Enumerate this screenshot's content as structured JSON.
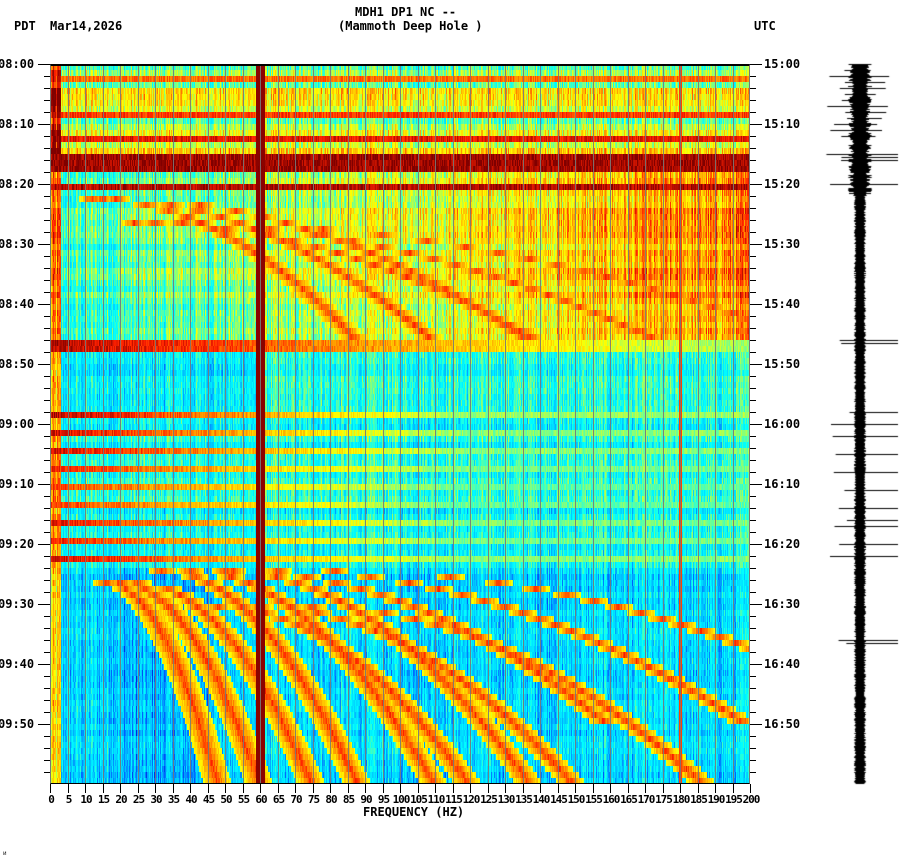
{
  "header": {
    "timezone_left": "PDT",
    "date": "Mar14,2026",
    "station_line": "MDH1 DP1 NC --",
    "station_name": "(Mammoth Deep Hole )",
    "timezone_right": "UTC"
  },
  "footer": {
    "corner_mark": "ᴎ"
  },
  "chart_data": {
    "type": "heatmap",
    "title": "MDH1 DP1 NC -- (Mammoth Deep Hole )",
    "subtitle": "Mar14,2026",
    "xlabel": "FREQUENCY (HZ)",
    "ylabel_left": "PDT",
    "ylabel_right": "UTC",
    "x_range": [
      0,
      200
    ],
    "x_ticks": [
      0,
      5,
      10,
      15,
      20,
      25,
      30,
      35,
      40,
      45,
      50,
      55,
      60,
      65,
      70,
      75,
      80,
      85,
      90,
      95,
      100,
      105,
      110,
      115,
      120,
      125,
      130,
      135,
      140,
      145,
      150,
      155,
      160,
      165,
      170,
      175,
      180,
      185,
      190,
      195,
      200
    ],
    "x_tick_labels": [
      "0",
      "5",
      "10",
      "15",
      "20",
      "25",
      "30",
      "35",
      "40",
      "45",
      "50",
      "55",
      "60",
      "65",
      "70",
      "75",
      "80",
      "85",
      "90",
      "95",
      "100",
      "105",
      "110",
      "115",
      "120",
      "125",
      "130",
      "135",
      "140",
      "145",
      "150",
      "155",
      "160",
      "165",
      "170",
      "175",
      "180",
      "185",
      "190",
      "195",
      "200"
    ],
    "y_range_minutes": [
      0,
      120
    ],
    "y_ticks_left": [
      "08:00",
      "08:10",
      "08:20",
      "08:30",
      "08:40",
      "08:50",
      "09:00",
      "09:10",
      "09:20",
      "09:30",
      "09:40",
      "09:50"
    ],
    "y_ticks_right": [
      "15:00",
      "15:10",
      "15:20",
      "15:30",
      "15:40",
      "15:50",
      "16:00",
      "16:10",
      "16:20",
      "16:30",
      "16:40",
      "16:50"
    ],
    "minor_tick_every_minutes": 2,
    "grid": "vertical lines every 5 Hz",
    "colormap": [
      "#0000c8",
      "#0064ff",
      "#00c8ff",
      "#00ffff",
      "#80ff80",
      "#ffff00",
      "#ffa000",
      "#ff2000",
      "#800000"
    ],
    "persistent_lines_hz": [
      {
        "hz": 60,
        "intensity": 1.0,
        "note": "power-line 60 Hz, dark red full height"
      },
      {
        "hz": 180,
        "intensity": 0.85,
        "note": "thin dark line, full height"
      }
    ],
    "high_energy_rows_minutes": [
      {
        "start": 2,
        "end": 3,
        "level": 0.8
      },
      {
        "start": 8,
        "end": 9,
        "level": 0.85
      },
      {
        "start": 12,
        "end": 13,
        "level": 0.9
      },
      {
        "start": 15,
        "end": 18,
        "level": 0.97
      },
      {
        "start": 20,
        "end": 21,
        "level": 0.95
      },
      {
        "start": 46,
        "end": 48,
        "level": 0.95
      },
      {
        "start": 58,
        "end": 59,
        "level": 0.95
      },
      {
        "start": 61,
        "end": 62,
        "level": 0.92
      },
      {
        "start": 64,
        "end": 65,
        "level": 0.92
      },
      {
        "start": 67,
        "end": 68,
        "level": 0.88
      },
      {
        "start": 70,
        "end": 71,
        "level": 0.85
      },
      {
        "start": 73,
        "end": 74,
        "level": 0.85
      },
      {
        "start": 76,
        "end": 77,
        "level": 0.9
      },
      {
        "start": 79,
        "end": 80,
        "level": 0.88
      },
      {
        "start": 82,
        "end": 83,
        "level": 0.92
      }
    ],
    "broadband_elevated_period_minutes": [
      18,
      46
    ],
    "quiet_periods_minutes": [
      [
        48,
        58
      ],
      [
        84,
        120
      ]
    ],
    "chirp_tracks": [
      {
        "t0": 22,
        "t1": 46,
        "f0": 15,
        "f1": 110,
        "note": "rising arcs"
      },
      {
        "t0": 26,
        "t1": 46,
        "f0": 30,
        "f1": 175
      },
      {
        "t0": 86,
        "t1": 120,
        "f0": 20,
        "f1": 60
      },
      {
        "t0": 84,
        "t1": 120,
        "f0": 40,
        "f1": 110
      },
      {
        "t0": 90,
        "t1": 120,
        "f0": 60,
        "f1": 150
      },
      {
        "t0": 84,
        "t1": 110,
        "f0": 65,
        "f1": 200
      }
    ],
    "notes": "Spectrogram for 2 hours; time increases downward; 6 px per minute; 3.5 px per Hz."
  },
  "seismogram": {
    "trace_color": "#000000",
    "spike_minutes": [
      1,
      2,
      3,
      4,
      5,
      6,
      7,
      8,
      9,
      10,
      11,
      12,
      15,
      15.5,
      16,
      20,
      46,
      46.5,
      58,
      60,
      62,
      65,
      68,
      71,
      74,
      76,
      77,
      80,
      82,
      96,
      96.5
    ]
  }
}
